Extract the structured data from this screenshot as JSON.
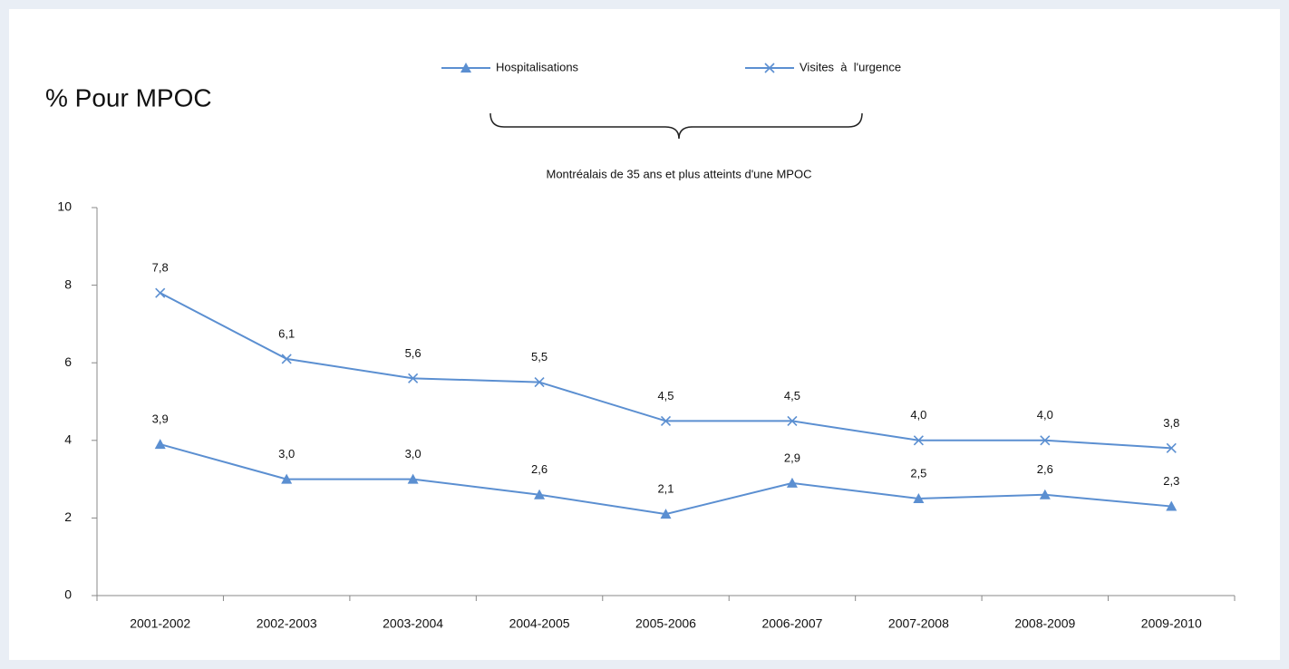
{
  "chart_data": {
    "type": "line",
    "title": "% Pour MPOC",
    "annotation": "Montréalais de 35 ans et plus atteints d'une MPOC",
    "categories": [
      "2001-2002",
      "2002-2003",
      "2003-2004",
      "2004-2005",
      "2005-2006",
      "2006-2007",
      "2007-2008",
      "2008-2009",
      "2009-2010"
    ],
    "series": [
      {
        "name": "Hospitalisations",
        "color": "#5b8fd1",
        "marker": "triangle",
        "values": [
          3.9,
          3.0,
          3.0,
          2.6,
          2.1,
          2.9,
          2.5,
          2.6,
          2.3
        ],
        "value_labels": [
          "3,9",
          "3,0",
          "3,0",
          "2,6",
          "2,1",
          "2,9",
          "2,5",
          "2,6",
          "2,3"
        ]
      },
      {
        "name": "Visites  à  l'urgence",
        "color": "#5b8fd1",
        "marker": "x",
        "values": [
          7.8,
          6.1,
          5.6,
          5.5,
          4.5,
          4.5,
          4.0,
          4.0,
          3.8
        ],
        "value_labels": [
          "7,8",
          "6,1",
          "5,6",
          "5,5",
          "4,5",
          "4,5",
          "4,0",
          "4,0",
          "3,8"
        ]
      }
    ],
    "ylim": [
      0,
      10
    ],
    "yticks": [
      0,
      2,
      4,
      6,
      8,
      10
    ],
    "grid": false,
    "legend": "top"
  }
}
